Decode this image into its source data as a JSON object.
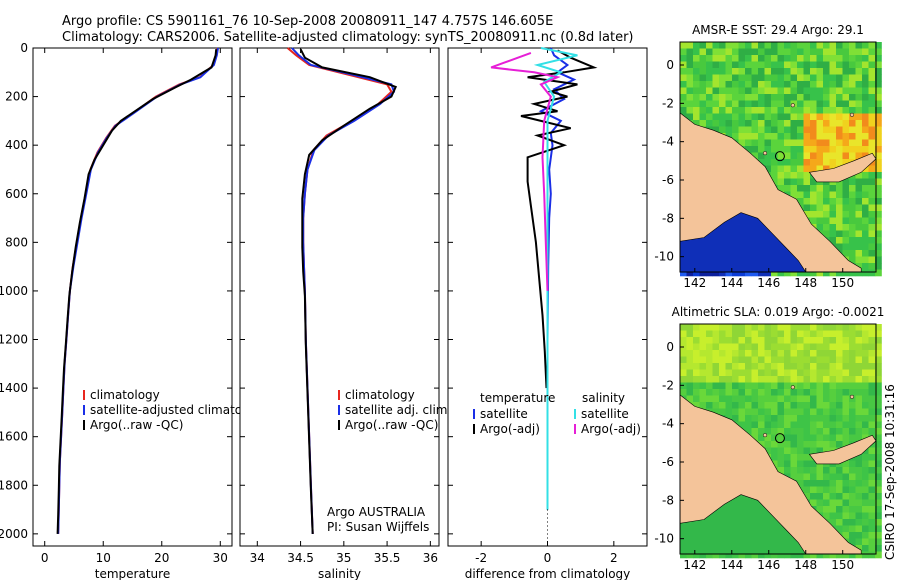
{
  "header": {
    "line1": "Argo profile: CS 5901161_76 10-Sep-2008 20080911_147 4.757S 146.605E",
    "line2": "Climatology: CARS2006. Satellite-adjusted climatology: synTS_20080911.nc (0.8d later)"
  },
  "side_label": "CSIRO 17-Sep-2008 10:31:16",
  "colors": {
    "climatology": "#e8261f",
    "satellite": "#1a2ee6",
    "argo": "#000000",
    "salinity_satellite": "#33e0e6",
    "salinity_argo": "#e61fd6",
    "land": "#f4c49a"
  },
  "chart_data": [
    {
      "type": "line",
      "panel": "temperature",
      "xlabel": "temperature",
      "ylabel": "",
      "xlim": [
        -2,
        32
      ],
      "ylim": [
        2050,
        0
      ],
      "xticks": [
        "0",
        "10",
        "20",
        "30"
      ],
      "yticks": [
        "0",
        "200",
        "400",
        "600",
        "800",
        "1000",
        "1200",
        "1400",
        "1600",
        "1800",
        "2000"
      ],
      "legend": [
        "climatology",
        "satellite-adjusted climatology",
        "Argo(..raw -QC)"
      ],
      "series": [
        {
          "name": "climatology",
          "points": [
            [
              29.5,
              0
            ],
            [
              29.3,
              30
            ],
            [
              28.8,
              70
            ],
            [
              26.5,
              120
            ],
            [
              23,
              150
            ],
            [
              19,
              200
            ],
            [
              15,
              270
            ],
            [
              12,
              320
            ],
            [
              10.5,
              370
            ],
            [
              9,
              430
            ],
            [
              7.8,
              500
            ],
            [
              7,
              600
            ],
            [
              6.2,
              700
            ],
            [
              5.5,
              800
            ],
            [
              4.8,
              900
            ],
            [
              4.3,
              1000
            ],
            [
              4,
              1100
            ],
            [
              3.7,
              1200
            ],
            [
              3.4,
              1300
            ],
            [
              3.2,
              1400
            ],
            [
              3,
              1500
            ],
            [
              2.8,
              1600
            ],
            [
              2.6,
              1700
            ],
            [
              2.5,
              1800
            ],
            [
              2.4,
              1900
            ],
            [
              2.3,
              2000
            ]
          ]
        },
        {
          "name": "satellite-adjusted climatology",
          "points": [
            [
              29.6,
              0
            ],
            [
              29.4,
              30
            ],
            [
              28.9,
              70
            ],
            [
              26.6,
              120
            ],
            [
              23.2,
              150
            ],
            [
              19.2,
              200
            ],
            [
              15.1,
              270
            ],
            [
              12.1,
              320
            ],
            [
              10.6,
              370
            ],
            [
              9.1,
              430
            ],
            [
              7.9,
              500
            ],
            [
              7.1,
              600
            ],
            [
              6.3,
              700
            ],
            [
              5.6,
              800
            ],
            [
              4.9,
              900
            ],
            [
              4.3,
              1000
            ],
            [
              4,
              1100
            ],
            [
              3.7,
              1200
            ],
            [
              3.4,
              1300
            ],
            [
              3.2,
              1400
            ],
            [
              3,
              1500
            ],
            [
              2.8,
              1600
            ],
            [
              2.6,
              1700
            ],
            [
              2.5,
              1800
            ],
            [
              2.4,
              1900
            ],
            [
              2.3,
              2000
            ]
          ]
        },
        {
          "name": "Argo(..raw -QC)",
          "points": [
            [
              29.3,
              5
            ],
            [
              29.2,
              30
            ],
            [
              28.5,
              80
            ],
            [
              25,
              130
            ],
            [
              22.5,
              160
            ],
            [
              18.5,
              210
            ],
            [
              13,
              300
            ],
            [
              11.5,
              340
            ],
            [
              10,
              400
            ],
            [
              8.5,
              460
            ],
            [
              7.5,
              520
            ],
            [
              6.8,
              620
            ],
            [
              6,
              720
            ],
            [
              5.3,
              820
            ],
            [
              4.7,
              920
            ],
            [
              4.2,
              1020
            ],
            [
              3.9,
              1120
            ],
            [
              3.6,
              1220
            ],
            [
              3.3,
              1320
            ],
            [
              3.1,
              1420
            ],
            [
              2.9,
              1520
            ],
            [
              2.7,
              1620
            ],
            [
              2.5,
              1720
            ],
            [
              2.4,
              1820
            ],
            [
              2.3,
              1920
            ],
            [
              2.2,
              2000
            ]
          ]
        }
      ]
    },
    {
      "type": "line",
      "panel": "salinity",
      "xlabel": "salinity",
      "ylabel": "",
      "xlim": [
        33.8,
        36.1
      ],
      "ylim": [
        2050,
        0
      ],
      "xticks": [
        "34",
        "34.5",
        "35",
        "35.5",
        "36"
      ],
      "legend": [
        "climatology",
        "satellite adj. clim.",
        "Argo(..raw -QC)"
      ],
      "annotation": [
        "Argo AUSTRALIA",
        "PI: Susan Wijffels"
      ],
      "series": [
        {
          "name": "climatology",
          "points": [
            [
              34.35,
              0
            ],
            [
              34.45,
              30
            ],
            [
              34.6,
              70
            ],
            [
              35.05,
              110
            ],
            [
              35.5,
              150
            ],
            [
              35.55,
              180
            ],
            [
              35.4,
              230
            ],
            [
              35.1,
              300
            ],
            [
              34.8,
              360
            ],
            [
              34.65,
              420
            ],
            [
              34.58,
              500
            ],
            [
              34.55,
              600
            ],
            [
              34.53,
              700
            ],
            [
              34.53,
              800
            ],
            [
              34.54,
              900
            ],
            [
              34.55,
              1000
            ],
            [
              34.56,
              1200
            ],
            [
              34.58,
              1400
            ],
            [
              34.6,
              1600
            ],
            [
              34.62,
              1800
            ],
            [
              34.64,
              2000
            ]
          ]
        },
        {
          "name": "satellite adj. clim.",
          "points": [
            [
              34.4,
              0
            ],
            [
              34.48,
              30
            ],
            [
              34.62,
              70
            ],
            [
              35.1,
              110
            ],
            [
              35.55,
              150
            ],
            [
              35.58,
              180
            ],
            [
              35.42,
              230
            ],
            [
              35.12,
              300
            ],
            [
              34.82,
              360
            ],
            [
              34.66,
              420
            ],
            [
              34.58,
              500
            ],
            [
              34.55,
              600
            ],
            [
              34.53,
              700
            ],
            [
              34.53,
              800
            ],
            [
              34.54,
              900
            ],
            [
              34.55,
              1000
            ],
            [
              34.56,
              1200
            ],
            [
              34.58,
              1400
            ],
            [
              34.6,
              1600
            ],
            [
              34.62,
              1800
            ],
            [
              34.64,
              2000
            ]
          ]
        },
        {
          "name": "Argo(..raw -QC)",
          "points": [
            [
              34.5,
              5
            ],
            [
              34.55,
              40
            ],
            [
              34.75,
              80
            ],
            [
              35.3,
              120
            ],
            [
              35.6,
              160
            ],
            [
              35.55,
              200
            ],
            [
              35.3,
              250
            ],
            [
              35.0,
              320
            ],
            [
              34.75,
              380
            ],
            [
              34.6,
              440
            ],
            [
              34.55,
              520
            ],
            [
              34.52,
              620
            ],
            [
              34.52,
              720
            ],
            [
              34.52,
              820
            ],
            [
              34.53,
              920
            ],
            [
              34.55,
              1020
            ],
            [
              34.56,
              1220
            ],
            [
              34.58,
              1420
            ],
            [
              34.6,
              1620
            ],
            [
              34.62,
              1820
            ],
            [
              34.64,
              2000
            ]
          ]
        }
      ]
    },
    {
      "type": "line",
      "panel": "difference",
      "xlabel": "difference from climatology",
      "ylabel": "",
      "xlim": [
        -3,
        3
      ],
      "ylim": [
        2050,
        0
      ],
      "xticks": [
        "-2",
        "0",
        "2"
      ],
      "legend_left": [
        "temperature",
        "satellite",
        "Argo(-adj)"
      ],
      "legend_right": [
        "salinity",
        "satellite",
        "Argo(-adj)"
      ],
      "series": [
        {
          "name": "temperature satellite",
          "points": [
            [
              0.1,
              0
            ],
            [
              0.2,
              30
            ],
            [
              0.6,
              70
            ],
            [
              0.3,
              100
            ],
            [
              0.8,
              130
            ],
            [
              0.2,
              170
            ],
            [
              0.5,
              210
            ],
            [
              -0.2,
              260
            ],
            [
              0.4,
              300
            ],
            [
              0.1,
              350
            ],
            [
              0.15,
              400
            ],
            [
              0.05,
              500
            ],
            [
              0.1,
              600
            ],
            [
              0.05,
              700
            ],
            [
              0.02,
              900
            ],
            [
              0,
              1200
            ],
            [
              0,
              1500
            ],
            [
              0,
              1900
            ]
          ]
        },
        {
          "name": "temperature Argo(-adj)",
          "points": [
            [
              0.3,
              10
            ],
            [
              0.7,
              40
            ],
            [
              1.4,
              80
            ],
            [
              0.5,
              100
            ],
            [
              -0.6,
              120
            ],
            [
              0.9,
              150
            ],
            [
              0.1,
              180
            ],
            [
              0.6,
              200
            ],
            [
              -0.4,
              230
            ],
            [
              0.3,
              260
            ],
            [
              -0.8,
              280
            ],
            [
              -0.2,
              300
            ],
            [
              0.7,
              330
            ],
            [
              -0.3,
              360
            ],
            [
              0.5,
              400
            ],
            [
              -0.6,
              450
            ],
            [
              -0.6,
              550
            ],
            [
              -0.5,
              650
            ],
            [
              -0.35,
              800
            ],
            [
              -0.25,
              950
            ],
            [
              -0.15,
              1100
            ],
            [
              -0.08,
              1250
            ],
            [
              -0.03,
              1400
            ]
          ]
        },
        {
          "name": "salinity satellite",
          "points": [
            [
              -0.2,
              0
            ],
            [
              0.9,
              30
            ],
            [
              -0.3,
              70
            ],
            [
              0.4,
              100
            ],
            [
              -0.1,
              140
            ],
            [
              0.2,
              200
            ],
            [
              0,
              300
            ],
            [
              0,
              600
            ],
            [
              0,
              1000
            ],
            [
              0,
              1500
            ],
            [
              0,
              1900
            ]
          ]
        },
        {
          "name": "salinity Argo(-adj)",
          "points": [
            [
              -0.5,
              20
            ],
            [
              -1.3,
              60
            ],
            [
              -1.7,
              80
            ],
            [
              -0.4,
              100
            ],
            [
              0.3,
              120
            ],
            [
              -0.2,
              150
            ],
            [
              0.1,
              200
            ],
            [
              -0.1,
              300
            ],
            [
              -0.15,
              450
            ],
            [
              -0.1,
              600
            ],
            [
              -0.05,
              800
            ],
            [
              0,
              1000
            ]
          ]
        }
      ]
    },
    {
      "type": "heatmap",
      "panel": "sst-map",
      "title": "AMSR-E SST: 29.4 Argo: 29.1",
      "xlim": [
        141.2,
        151.8
      ],
      "ylim": [
        -10.8,
        1.2
      ],
      "xticks": [
        "142",
        "144",
        "146",
        "148",
        "150"
      ],
      "yticks": [
        "0",
        "-2",
        "-4",
        "-6",
        "-8",
        "-10"
      ],
      "marker": [
        146.605,
        -4.757
      ]
    },
    {
      "type": "heatmap",
      "panel": "sla-map",
      "title": "Altimetric SLA: 0.019 Argo: -0.0021",
      "xlim": [
        141.2,
        151.8
      ],
      "ylim": [
        -10.8,
        1.2
      ],
      "xticks": [
        "142",
        "144",
        "146",
        "148",
        "150"
      ],
      "yticks": [
        "0",
        "-2",
        "-4",
        "-6",
        "-8",
        "-10"
      ],
      "marker": [
        146.605,
        -4.757
      ]
    }
  ]
}
